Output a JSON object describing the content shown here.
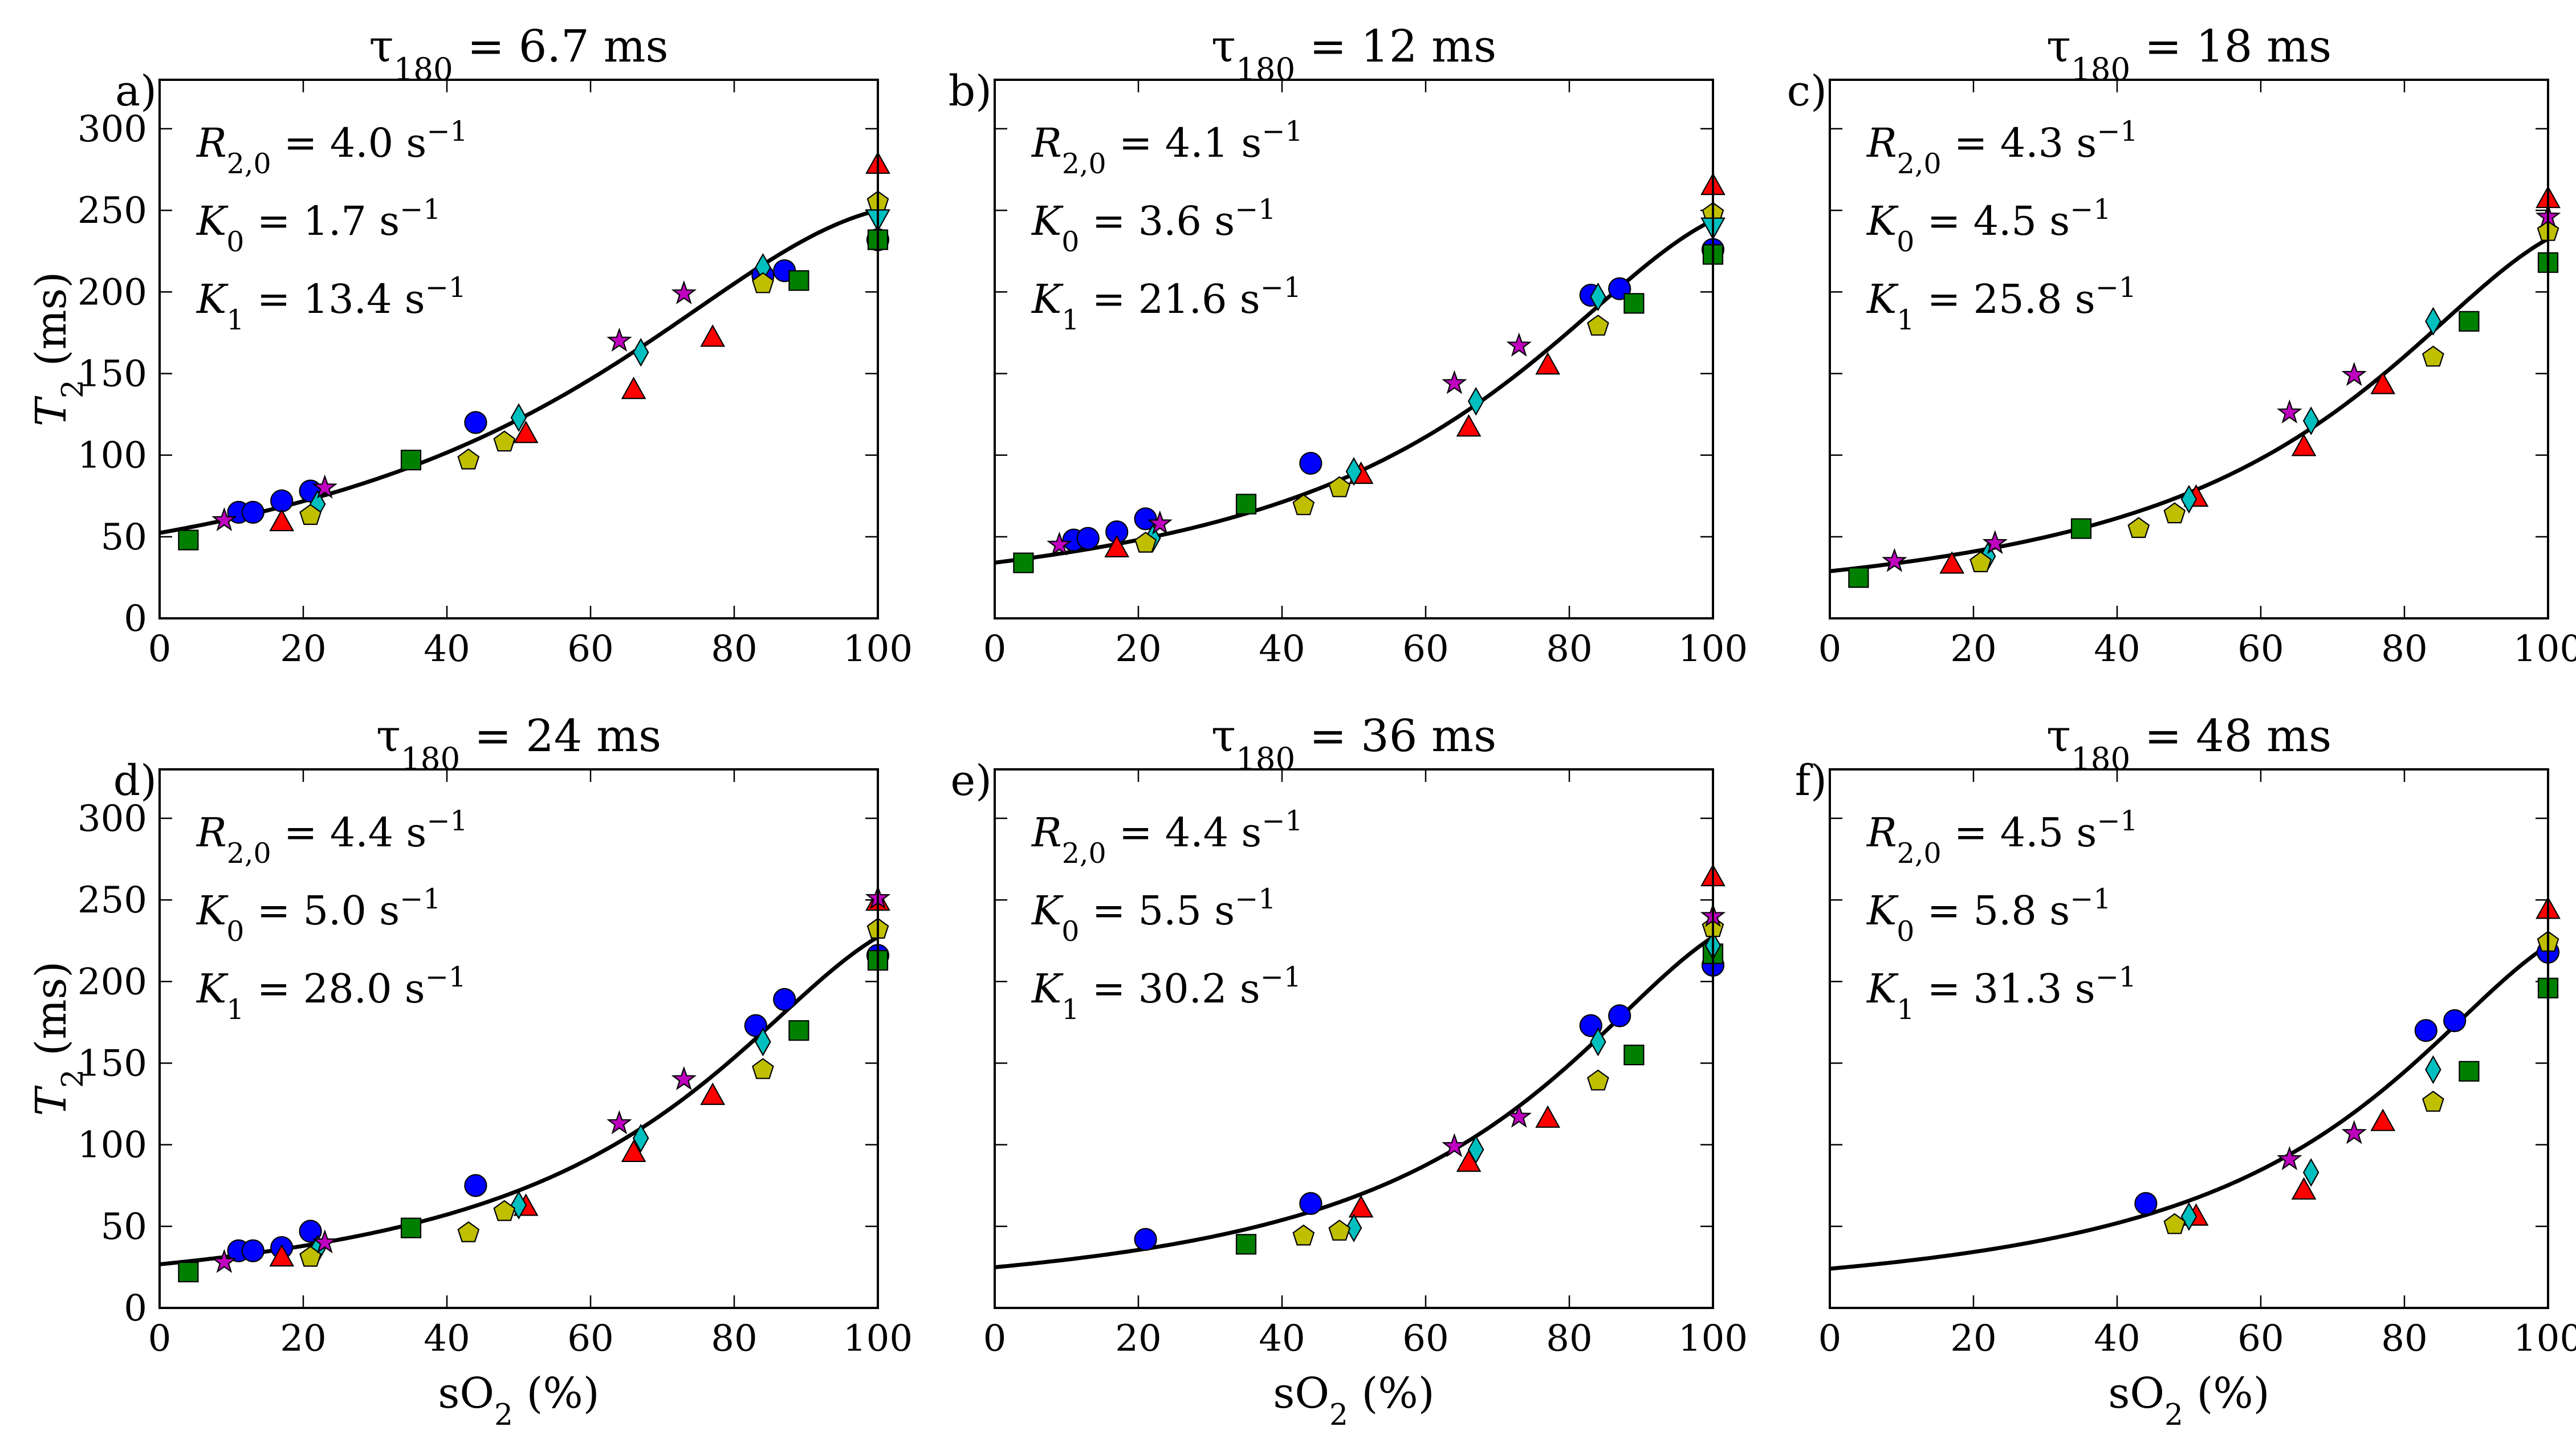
{
  "figure": {
    "rows": 2,
    "cols": 3,
    "shared_xlabel": "sO₂ (%)",
    "shared_ylabel": "T₂ (ms)"
  },
  "chart_data": [
    {
      "type": "scatter",
      "panel": "a)",
      "title": "τ180 = 6.7 ms",
      "xlabel": "sO₂ (%)",
      "ylabel": "T₂ (ms)",
      "xlim": [
        0,
        100
      ],
      "ylim": [
        0,
        330
      ],
      "xticks": [
        0,
        20,
        40,
        60,
        80,
        100
      ],
      "yticks": [
        0,
        50,
        100,
        150,
        200,
        250,
        300
      ],
      "annotations": [
        "R2,0 = 4.0 s⁻¹",
        "K0 = 1.7 s⁻¹",
        "K1 = 13.4 s⁻¹"
      ],
      "fit": {
        "R20": 4.0,
        "K0": 1.7,
        "K1": 13.4
      },
      "series": [
        {
          "name": "circle",
          "marker": "circle",
          "color": "#0000ff",
          "points": [
            [
              11,
              65
            ],
            [
              13,
              65
            ],
            [
              17,
              72
            ],
            [
              21,
              78
            ],
            [
              44,
              120
            ],
            [
              84,
              210
            ],
            [
              87,
              213
            ],
            [
              100,
              232
            ]
          ]
        },
        {
          "name": "square",
          "marker": "square",
          "color": "#008000",
          "points": [
            [
              4,
              48
            ],
            [
              35,
              97
            ],
            [
              89,
              207
            ],
            [
              100,
              232
            ]
          ]
        },
        {
          "name": "triangle-up",
          "marker": "triangle-up",
          "color": "#ff0000",
          "points": [
            [
              17,
              59
            ],
            [
              51,
              113
            ],
            [
              66,
              140
            ],
            [
              77,
              172
            ],
            [
              100,
              278
            ]
          ]
        },
        {
          "name": "diamond",
          "marker": "diamond",
          "color": "#00bfbf",
          "points": [
            [
              22,
              70
            ],
            [
              50,
              123
            ],
            [
              67,
              163
            ],
            [
              84,
              215
            ]
          ]
        },
        {
          "name": "pentagon",
          "marker": "pentagon",
          "color": "#bfbf00",
          "points": [
            [
              21,
              63
            ],
            [
              43,
              97
            ],
            [
              48,
              108
            ],
            [
              84,
              205
            ],
            [
              100,
              255
            ]
          ]
        },
        {
          "name": "star",
          "marker": "star",
          "color": "#bf00bf",
          "points": [
            [
              9,
              60
            ],
            [
              23,
              80
            ],
            [
              64,
              170
            ],
            [
              73,
              199
            ]
          ]
        },
        {
          "name": "triangle-down",
          "marker": "triangle-down",
          "color": "#00bfbf",
          "points": [
            [
              100,
              245
            ]
          ]
        }
      ]
    },
    {
      "type": "scatter",
      "panel": "b)",
      "title": "τ180 = 12 ms",
      "xlabel": "sO₂ (%)",
      "ylabel": "T₂ (ms)",
      "xlim": [
        0,
        100
      ],
      "ylim": [
        0,
        330
      ],
      "xticks": [
        0,
        20,
        40,
        60,
        80,
        100
      ],
      "yticks": [
        0,
        50,
        100,
        150,
        200,
        250,
        300
      ],
      "annotations": [
        "R2,0 = 4.1 s⁻¹",
        "K0 = 3.6 s⁻¹",
        "K1 = 21.6 s⁻¹"
      ],
      "fit": {
        "R20": 4.1,
        "K0": 3.6,
        "K1": 21.6
      },
      "series": [
        {
          "name": "circle",
          "marker": "circle",
          "color": "#0000ff",
          "points": [
            [
              11,
              48
            ],
            [
              13,
              49
            ],
            [
              17,
              53
            ],
            [
              21,
              61
            ],
            [
              44,
              95
            ],
            [
              83,
              198
            ],
            [
              87,
              202
            ],
            [
              100,
              226
            ]
          ]
        },
        {
          "name": "square",
          "marker": "square",
          "color": "#008000",
          "points": [
            [
              4,
              34
            ],
            [
              35,
              70
            ],
            [
              89,
              193
            ],
            [
              100,
              223
            ]
          ]
        },
        {
          "name": "triangle-up",
          "marker": "triangle-up",
          "color": "#ff0000",
          "points": [
            [
              17,
              43
            ],
            [
              51,
              88
            ],
            [
              66,
              117
            ],
            [
              77,
              155
            ],
            [
              100,
              265
            ]
          ]
        },
        {
          "name": "diamond",
          "marker": "diamond",
          "color": "#00bfbf",
          "points": [
            [
              22,
              49
            ],
            [
              50,
              90
            ],
            [
              67,
              133
            ],
            [
              84,
              197
            ]
          ]
        },
        {
          "name": "pentagon",
          "marker": "pentagon",
          "color": "#bfbf00",
          "points": [
            [
              21,
              46
            ],
            [
              43,
              69
            ],
            [
              48,
              80
            ],
            [
              84,
              179
            ],
            [
              100,
              248
            ]
          ]
        },
        {
          "name": "star",
          "marker": "star",
          "color": "#bf00bf",
          "points": [
            [
              9,
              45
            ],
            [
              23,
              58
            ],
            [
              64,
              144
            ],
            [
              73,
              167
            ]
          ]
        },
        {
          "name": "triangle-down",
          "marker": "triangle-down",
          "color": "#00bfbf",
          "points": [
            [
              100,
              240
            ]
          ]
        }
      ]
    },
    {
      "type": "scatter",
      "panel": "c)",
      "title": "τ180 = 18 ms",
      "xlabel": "sO₂ (%)",
      "ylabel": "T₂ (ms)",
      "xlim": [
        0,
        100
      ],
      "ylim": [
        0,
        330
      ],
      "xticks": [
        0,
        20,
        40,
        60,
        80,
        100
      ],
      "yticks": [
        0,
        50,
        100,
        150,
        200,
        250,
        300
      ],
      "annotations": [
        "R2,0 = 4.3 s⁻¹",
        "K0 = 4.5 s⁻¹",
        "K1 = 25.8 s⁻¹"
      ],
      "fit": {
        "R20": 4.3,
        "K0": 4.5,
        "K1": 25.8
      },
      "series": [
        {
          "name": "square",
          "marker": "square",
          "color": "#008000",
          "points": [
            [
              4,
              25
            ],
            [
              35,
              55
            ],
            [
              89,
              182
            ],
            [
              100,
              218
            ]
          ]
        },
        {
          "name": "triangle-up",
          "marker": "triangle-up",
          "color": "#ff0000",
          "points": [
            [
              17,
              33
            ],
            [
              51,
              74
            ],
            [
              66,
              105
            ],
            [
              77,
              143
            ],
            [
              100,
              257
            ]
          ]
        },
        {
          "name": "diamond",
          "marker": "diamond",
          "color": "#00bfbf",
          "points": [
            [
              22,
              38
            ],
            [
              50,
              73
            ],
            [
              67,
              121
            ],
            [
              84,
              182
            ]
          ]
        },
        {
          "name": "pentagon",
          "marker": "pentagon",
          "color": "#bfbf00",
          "points": [
            [
              21,
              34
            ],
            [
              43,
              55
            ],
            [
              48,
              64
            ],
            [
              84,
              160
            ],
            [
              100,
              237
            ]
          ]
        },
        {
          "name": "star",
          "marker": "star",
          "color": "#bf00bf",
          "points": [
            [
              9,
              35
            ],
            [
              23,
              46
            ],
            [
              64,
              126
            ],
            [
              73,
              149
            ],
            [
              100,
              246
            ]
          ]
        }
      ]
    },
    {
      "type": "scatter",
      "panel": "d)",
      "title": "τ180 = 24 ms",
      "xlabel": "sO₂ (%)",
      "ylabel": "T₂ (ms)",
      "xlim": [
        0,
        100
      ],
      "ylim": [
        0,
        330
      ],
      "xticks": [
        0,
        20,
        40,
        60,
        80,
        100
      ],
      "yticks": [
        0,
        50,
        100,
        150,
        200,
        250,
        300
      ],
      "annotations": [
        "R2,0 = 4.4 s⁻¹",
        "K0 = 5.0 s⁻¹",
        "K1 = 28.0 s⁻¹"
      ],
      "fit": {
        "R20": 4.4,
        "K0": 5.0,
        "K1": 28.0
      },
      "series": [
        {
          "name": "circle",
          "marker": "circle",
          "color": "#0000ff",
          "points": [
            [
              11,
              35
            ],
            [
              13,
              35
            ],
            [
              17,
              37
            ],
            [
              21,
              47
            ],
            [
              44,
              75
            ],
            [
              83,
              173
            ],
            [
              87,
              189
            ],
            [
              100,
              216
            ]
          ]
        },
        {
          "name": "square",
          "marker": "square",
          "color": "#008000",
          "points": [
            [
              4,
              22
            ],
            [
              35,
              49
            ],
            [
              89,
              170
            ],
            [
              100,
              213
            ]
          ]
        },
        {
          "name": "triangle-up",
          "marker": "triangle-up",
          "color": "#ff0000",
          "points": [
            [
              17,
              31
            ],
            [
              51,
              62
            ],
            [
              66,
              95
            ],
            [
              77,
              130
            ],
            [
              100,
              249
            ]
          ]
        },
        {
          "name": "diamond",
          "marker": "diamond",
          "color": "#00bfbf",
          "points": [
            [
              22,
              36
            ],
            [
              50,
              63
            ],
            [
              67,
              104
            ],
            [
              84,
              163
            ]
          ]
        },
        {
          "name": "pentagon",
          "marker": "pentagon",
          "color": "#bfbf00",
          "points": [
            [
              21,
              31
            ],
            [
              43,
              46
            ],
            [
              48,
              59
            ],
            [
              84,
              146
            ],
            [
              100,
              232
            ]
          ]
        },
        {
          "name": "star",
          "marker": "star",
          "color": "#bf00bf",
          "points": [
            [
              9,
              28
            ],
            [
              23,
              40
            ],
            [
              64,
              113
            ],
            [
              73,
              140
            ],
            [
              100,
              251
            ]
          ]
        }
      ]
    },
    {
      "type": "scatter",
      "panel": "e)",
      "title": "τ180 = 36 ms",
      "xlabel": "sO₂ (%)",
      "ylabel": "T₂ (ms)",
      "xlim": [
        0,
        100
      ],
      "ylim": [
        0,
        330
      ],
      "xticks": [
        0,
        20,
        40,
        60,
        80,
        100
      ],
      "yticks": [
        0,
        50,
        100,
        150,
        200,
        250,
        300
      ],
      "annotations": [
        "R2,0 = 4.4 s⁻¹",
        "K0 = 5.5 s⁻¹",
        "K1 = 30.2 s⁻¹"
      ],
      "fit": {
        "R20": 4.4,
        "K0": 5.5,
        "K1": 30.2
      },
      "series": [
        {
          "name": "circle",
          "marker": "circle",
          "color": "#0000ff",
          "points": [
            [
              21,
              42
            ],
            [
              44,
              64
            ],
            [
              83,
              173
            ],
            [
              87,
              179
            ],
            [
              100,
              210
            ]
          ]
        },
        {
          "name": "square",
          "marker": "square",
          "color": "#008000",
          "points": [
            [
              35,
              39
            ],
            [
              89,
              155
            ],
            [
              100,
              217
            ]
          ]
        },
        {
          "name": "triangle-up",
          "marker": "triangle-up",
          "color": "#ff0000",
          "points": [
            [
              51,
              61
            ],
            [
              66,
              89
            ],
            [
              77,
              116
            ],
            [
              100,
              264
            ]
          ]
        },
        {
          "name": "diamond",
          "marker": "diamond",
          "color": "#00bfbf",
          "points": [
            [
              50,
              49
            ],
            [
              67,
              97
            ],
            [
              84,
              163
            ],
            [
              100,
              222
            ]
          ]
        },
        {
          "name": "pentagon",
          "marker": "pentagon",
          "color": "#bfbf00",
          "points": [
            [
              43,
              44
            ],
            [
              48,
              47
            ],
            [
              84,
              139
            ],
            [
              100,
              233
            ]
          ]
        },
        {
          "name": "star",
          "marker": "star",
          "color": "#bf00bf",
          "points": [
            [
              64,
              99
            ],
            [
              73,
              117
            ],
            [
              100,
              240
            ]
          ]
        }
      ]
    },
    {
      "type": "scatter",
      "panel": "f)",
      "title": "τ180 = 48 ms",
      "xlabel": "sO₂ (%)",
      "ylabel": "T₂ (ms)",
      "xlim": [
        0,
        100
      ],
      "ylim": [
        0,
        330
      ],
      "xticks": [
        0,
        20,
        40,
        60,
        80,
        100
      ],
      "yticks": [
        0,
        50,
        100,
        150,
        200,
        250,
        300
      ],
      "annotations": [
        "R2,0 = 4.5 s⁻¹",
        "K0 = 5.8 s⁻¹",
        "K1 = 31.3 s⁻¹"
      ],
      "fit": {
        "R20": 4.5,
        "K0": 5.8,
        "K1": 31.3
      },
      "series": [
        {
          "name": "circle",
          "marker": "circle",
          "color": "#0000ff",
          "points": [
            [
              44,
              64
            ],
            [
              83,
              170
            ],
            [
              87,
              176
            ],
            [
              100,
              218
            ]
          ]
        },
        {
          "name": "square",
          "marker": "square",
          "color": "#008000",
          "points": [
            [
              89,
              145
            ],
            [
              100,
              196
            ]
          ]
        },
        {
          "name": "triangle-up",
          "marker": "triangle-up",
          "color": "#ff0000",
          "points": [
            [
              51,
              56
            ],
            [
              66,
              72
            ],
            [
              77,
              114
            ],
            [
              100,
              244
            ]
          ]
        },
        {
          "name": "diamond",
          "marker": "diamond",
          "color": "#00bfbf",
          "points": [
            [
              50,
              56
            ],
            [
              67,
              83
            ],
            [
              84,
              146
            ]
          ]
        },
        {
          "name": "pentagon",
          "marker": "pentagon",
          "color": "#bfbf00",
          "points": [
            [
              48,
              51
            ],
            [
              84,
              126
            ],
            [
              100,
              224
            ]
          ]
        },
        {
          "name": "star",
          "marker": "star",
          "color": "#bf00bf",
          "points": [
            [
              64,
              91
            ],
            [
              73,
              107
            ]
          ]
        }
      ]
    }
  ]
}
